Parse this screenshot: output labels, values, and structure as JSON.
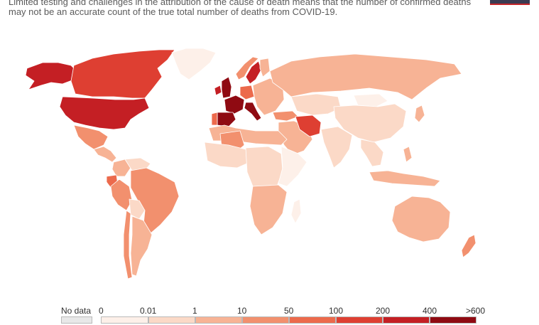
{
  "subtitle_lines": [
    "Limited testing and challenges in the attribution of the cause of death means that the number of confirmed deaths",
    "may not be an accurate count of the true total number of deaths from COVID-19."
  ],
  "colors": {
    "no_data": "#e8e8e8",
    "bin0": "#fdf0e9",
    "bin1": "#fbd9c7",
    "bin2": "#f7b395",
    "bin3": "#f2906e",
    "bin4": "#ec6a4c",
    "bin5": "#de3f32",
    "bin6": "#c41f24",
    "bin7": "#8f0a12",
    "border": "#ffffff",
    "brand_dark": "#3b3b52",
    "brand_red": "#c4262a"
  },
  "legend": {
    "no_data_label": "No data",
    "ticks": [
      "0",
      "0.01",
      "1",
      "10",
      "50",
      "100",
      "200",
      "400",
      ">600"
    ]
  },
  "regions": [
    {
      "name": "canada",
      "bin": 5
    },
    {
      "name": "alaska",
      "bin": 6
    },
    {
      "name": "usa",
      "bin": 6
    },
    {
      "name": "greenland",
      "bin": 0
    },
    {
      "name": "mexico",
      "bin": 3
    },
    {
      "name": "central-america",
      "bin": 2
    },
    {
      "name": "colombia",
      "bin": 2
    },
    {
      "name": "venezuela",
      "bin": 1
    },
    {
      "name": "ecuador",
      "bin": 4
    },
    {
      "name": "peru",
      "bin": 3
    },
    {
      "name": "brazil",
      "bin": 3
    },
    {
      "name": "bolivia",
      "bin": 1
    },
    {
      "name": "chile",
      "bin": 3
    },
    {
      "name": "argentina",
      "bin": 2
    },
    {
      "name": "uk",
      "bin": 7
    },
    {
      "name": "ireland",
      "bin": 6
    },
    {
      "name": "france",
      "bin": 7
    },
    {
      "name": "spain",
      "bin": 7
    },
    {
      "name": "portugal",
      "bin": 4
    },
    {
      "name": "italy",
      "bin": 7
    },
    {
      "name": "germany",
      "bin": 4
    },
    {
      "name": "sweden",
      "bin": 6
    },
    {
      "name": "norway",
      "bin": 3
    },
    {
      "name": "finland",
      "bin": 2
    },
    {
      "name": "eastern-europe",
      "bin": 2
    },
    {
      "name": "russia",
      "bin": 2
    },
    {
      "name": "turkey",
      "bin": 3
    },
    {
      "name": "iran",
      "bin": 5
    },
    {
      "name": "middle-east",
      "bin": 2
    },
    {
      "name": "central-asia",
      "bin": 1
    },
    {
      "name": "china",
      "bin": 1
    },
    {
      "name": "mongolia",
      "bin": 0
    },
    {
      "name": "india",
      "bin": 1
    },
    {
      "name": "southeast-asia",
      "bin": 1
    },
    {
      "name": "japan",
      "bin": 2
    },
    {
      "name": "north-africa",
      "bin": 2
    },
    {
      "name": "algeria",
      "bin": 3
    },
    {
      "name": "west-africa",
      "bin": 1
    },
    {
      "name": "central-africa",
      "bin": 1
    },
    {
      "name": "east-africa",
      "bin": 0
    },
    {
      "name": "southern-africa",
      "bin": 2
    },
    {
      "name": "madagascar",
      "bin": 0
    },
    {
      "name": "indonesia",
      "bin": 2
    },
    {
      "name": "philippines",
      "bin": 2
    },
    {
      "name": "australia",
      "bin": 2
    },
    {
      "name": "new-zealand",
      "bin": 3
    }
  ]
}
